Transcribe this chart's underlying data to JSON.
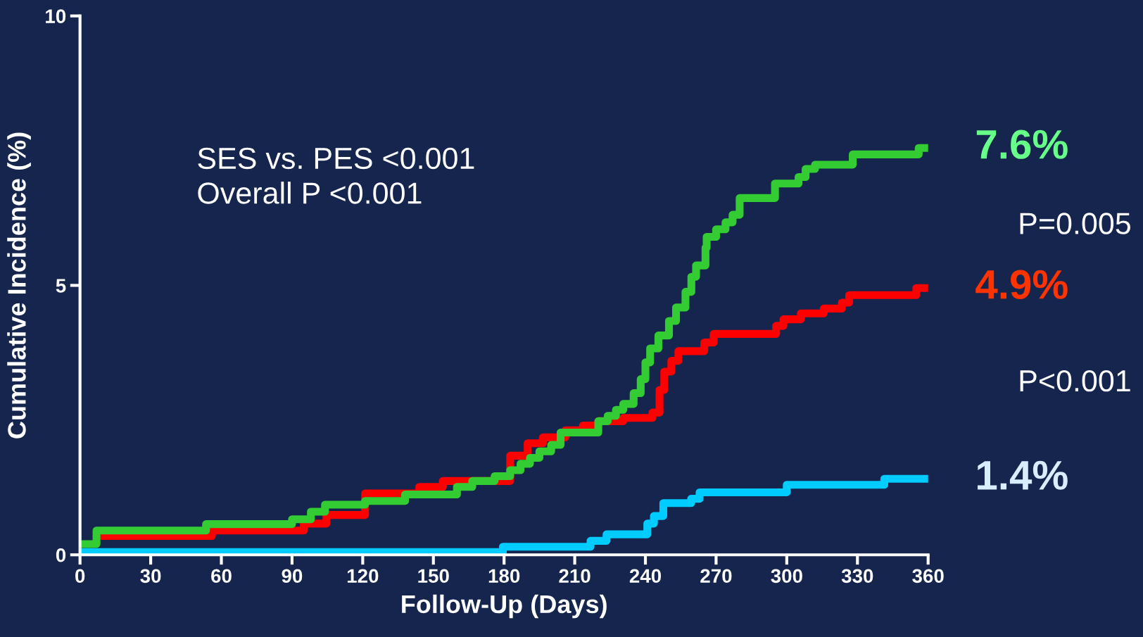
{
  "chart_data": {
    "type": "step",
    "xlabel": "Follow-Up (Days)",
    "ylabel": "Cumulative Incidence (%)",
    "xlim": [
      0,
      360
    ],
    "xticks": [
      0,
      30,
      60,
      90,
      120,
      150,
      180,
      210,
      240,
      270,
      300,
      330,
      360
    ],
    "ylim": [
      0,
      10
    ],
    "yticks": [
      0,
      5,
      10
    ],
    "grid": false,
    "legend": false,
    "line_style": "solid",
    "marker": "none",
    "series": [
      {
        "color": "#33cc33",
        "x": [
          0,
          7,
          53.5,
          90,
          98,
          104,
          121,
          138,
          160,
          166.5,
          176,
          182.6,
          187,
          191,
          195,
          200,
          204,
          220,
          224,
          227.5,
          230.6,
          235,
          238,
          240,
          242,
          245.5,
          250,
          253,
          257,
          259.5,
          261.5,
          265.5,
          266,
          270,
          274,
          277,
          280,
          295,
          305,
          308,
          312,
          328,
          356,
          360
        ],
        "values": [
          0.2,
          0.45,
          0.57,
          0.66,
          0.8,
          0.93,
          1.0,
          1.12,
          1.26,
          1.37,
          1.46,
          1.57,
          1.69,
          1.8,
          1.92,
          2.04,
          2.27,
          2.48,
          2.58,
          2.69,
          2.8,
          3.0,
          3.26,
          3.57,
          3.83,
          4.07,
          4.34,
          4.59,
          4.88,
          5.16,
          5.37,
          5.7,
          5.9,
          6.04,
          6.17,
          6.31,
          6.62,
          6.89,
          7.01,
          7.16,
          7.24,
          7.43,
          7.55,
          7.55
        ]
      },
      {
        "color": "#ff0000",
        "x": [
          7,
          56,
          95,
          104.6,
          121,
          144,
          154,
          182.6,
          190,
          196.5,
          206,
          213.5,
          220,
          230.6,
          243,
          246,
          248,
          251,
          254,
          265,
          269,
          295.5,
          298.6,
          306,
          315.7,
          323.4,
          326.5,
          355,
          360
        ],
        "values": [
          0.35,
          0.45,
          0.58,
          0.74,
          1.14,
          1.26,
          1.37,
          1.84,
          2.07,
          2.18,
          2.31,
          2.4,
          2.48,
          2.54,
          2.64,
          3.06,
          3.4,
          3.6,
          3.78,
          3.94,
          4.1,
          4.25,
          4.37,
          4.48,
          4.57,
          4.68,
          4.82,
          4.95,
          4.95
        ]
      },
      {
        "color": "#00ccff",
        "x": [
          0,
          179.5,
          216.7,
          223.5,
          240.8,
          243.6,
          247.6,
          259.4,
          263,
          300,
          341.4,
          360
        ],
        "values": [
          0.05,
          0.15,
          0.26,
          0.38,
          0.58,
          0.72,
          0.96,
          1.04,
          1.16,
          1.3,
          1.41,
          1.41
        ]
      }
    ],
    "annotations": [
      "SES vs. PES <0.001\nOverall P <0.001",
      "P=0.005",
      "P<0.001",
      "7.6%",
      "4.9%",
      "1.4%"
    ]
  }
}
